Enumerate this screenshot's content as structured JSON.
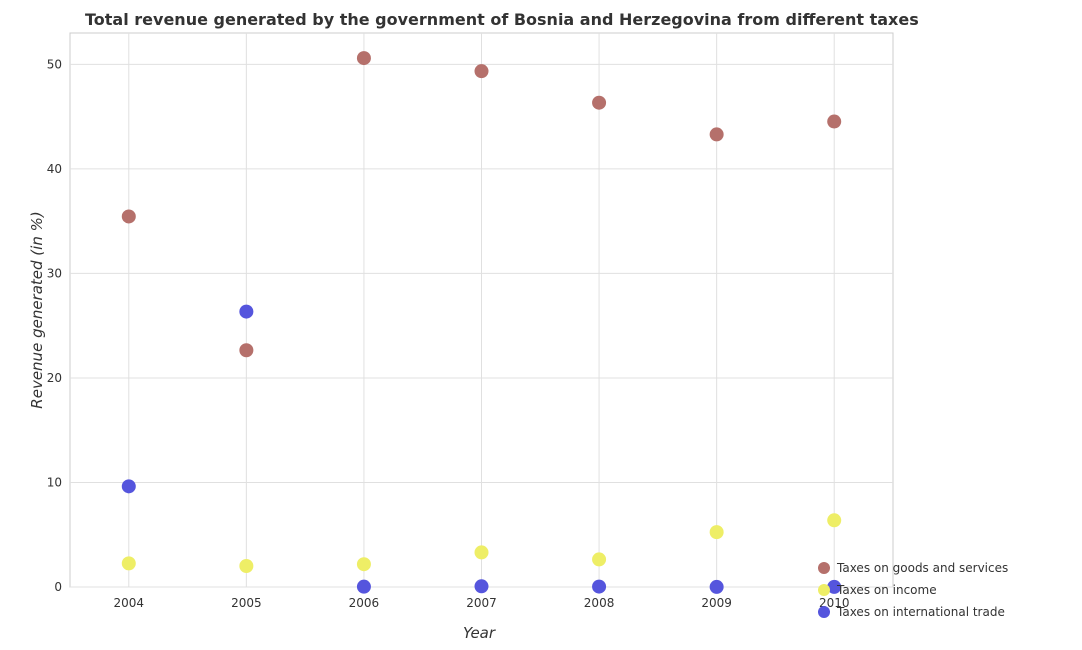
{
  "chart_data": {
    "type": "scatter",
    "title": "Total revenue generated by the government of Bosnia and Herzegovina from different taxes",
    "xlabel": "Year",
    "ylabel": "Revenue generated (in %)",
    "categories": [
      "2004",
      "2005",
      "2006",
      "2007",
      "2008",
      "2009",
      "2010"
    ],
    "ylim": [
      0,
      53
    ],
    "yticks": [
      0,
      10,
      20,
      30,
      40,
      50
    ],
    "grid": true,
    "legend_position": "bottom-right",
    "series": [
      {
        "name": "Taxes on goods and services",
        "color": "#b5706b",
        "values": [
          35.45,
          22.65,
          50.6,
          49.35,
          46.33,
          43.3,
          44.53
        ]
      },
      {
        "name": "Taxes on income",
        "color": "#eeee66",
        "values": [
          2.26,
          2.01,
          2.18,
          3.31,
          2.64,
          5.25,
          6.38
        ]
      },
      {
        "name": "Taxes on international trade",
        "color": "#5555dd",
        "values": [
          9.63,
          26.35,
          0.03,
          0.07,
          0.04,
          0.01,
          0.01
        ]
      }
    ]
  }
}
